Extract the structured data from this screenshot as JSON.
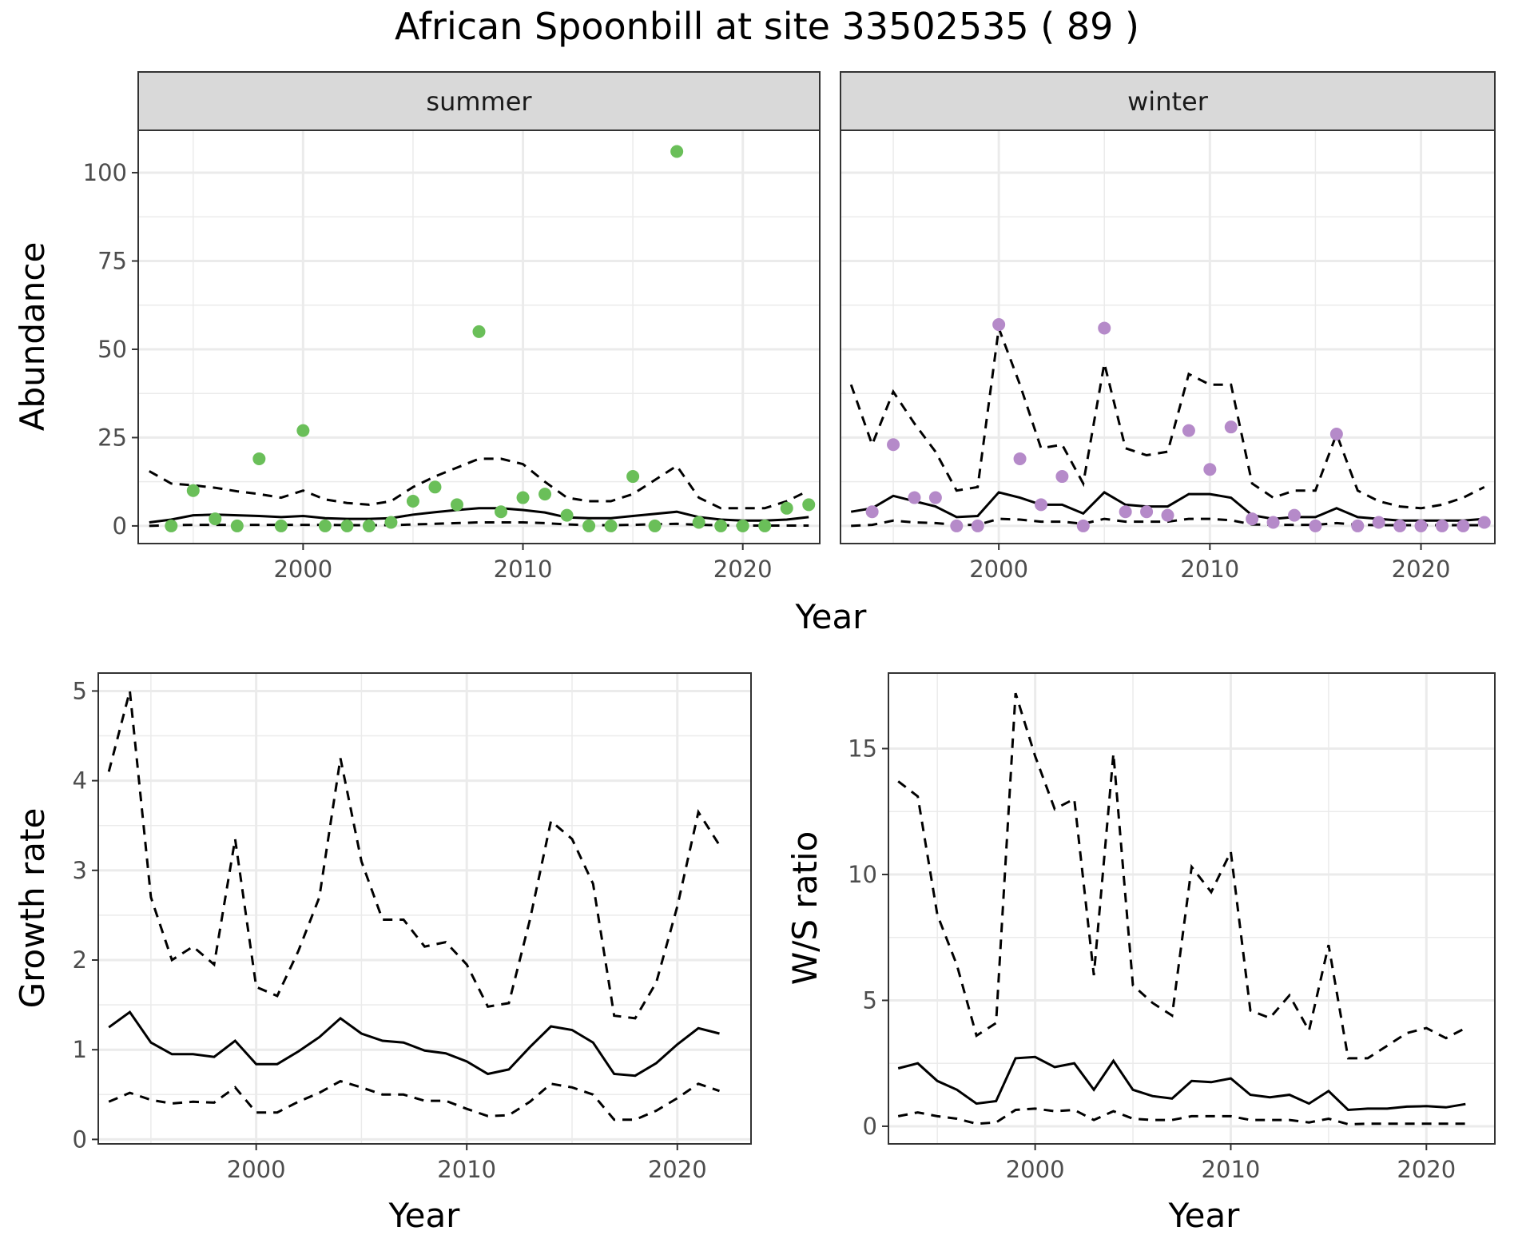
{
  "title": "African Spoonbill at site 33502535 ( 89 )",
  "colors": {
    "summer": "#6abf59",
    "winter": "#b58ac9"
  },
  "chart_data": [
    {
      "id": "abundance",
      "type": "scatter",
      "ylabel": "Abundance",
      "xlabel": "Year",
      "xlim": [
        1992.5,
        2023.5
      ],
      "ylim": [
        -5,
        112
      ],
      "xticks": [
        2000,
        2010,
        2020
      ],
      "yticks": [
        0,
        25,
        50,
        75,
        100
      ],
      "facets": [
        {
          "label": "summer",
          "color": "summer",
          "points": {
            "x": [
              1994,
              1995,
              1996,
              1997,
              1998,
              1999,
              2000,
              2001,
              2002,
              2003,
              2004,
              2005,
              2006,
              2007,
              2008,
              2009,
              2010,
              2011,
              2012,
              2013,
              2014,
              2015,
              2016,
              2017,
              2018,
              2019,
              2020,
              2021,
              2022,
              2023
            ],
            "y": [
              0,
              10,
              2,
              0,
              19,
              0,
              27,
              0,
              0,
              0,
              1,
              7,
              11,
              6,
              55,
              4,
              8,
              9,
              3,
              0,
              0,
              14,
              0,
              106,
              1,
              0,
              0,
              0,
              5,
              6
            ]
          },
          "lines": {
            "x": [
              1993,
              1994,
              1995,
              1996,
              1997,
              1998,
              1999,
              2000,
              2001,
              2002,
              2003,
              2004,
              2005,
              2006,
              2007,
              2008,
              2009,
              2010,
              2011,
              2012,
              2013,
              2014,
              2015,
              2016,
              2017,
              2018,
              2019,
              2020,
              2021,
              2022,
              2023
            ],
            "mid": [
              1,
              1.8,
              3,
              3.2,
              3,
              2.8,
              2.5,
              2.8,
              2.2,
              2,
              2,
              2.2,
              3.2,
              3.9,
              4.5,
              5,
              5,
              4.5,
              3.8,
              2.4,
              2.2,
              2.2,
              2.8,
              3.4,
              4,
              2.5,
              1.8,
              1.5,
              1.5,
              1.8,
              2.5
            ],
            "lower": [
              0,
              0.2,
              0.3,
              0.3,
              0.3,
              0.3,
              0.3,
              0.3,
              0.3,
              0.2,
              0.2,
              0.2,
              0.4,
              0.6,
              0.8,
              1,
              1,
              1,
              0.8,
              0.4,
              0.2,
              0.2,
              0.3,
              0.5,
              0.6,
              0.3,
              0.2,
              0.1,
              0.1,
              0.1,
              0.1
            ],
            "upper": [
              15.5,
              12,
              11.5,
              10.8,
              9.8,
              9,
              8,
              10,
              7.5,
              6.5,
              6,
              7,
              11,
              14,
              16.5,
              19,
              19,
              17.5,
              12.5,
              8,
              7,
              7,
              9,
              13,
              17,
              8,
              5,
              5,
              5,
              7,
              10
            ]
          }
        },
        {
          "label": "winter",
          "color": "winter",
          "points": {
            "x": [
              1994,
              1995,
              1996,
              1997,
              1998,
              1999,
              2000,
              2001,
              2002,
              2003,
              2004,
              2005,
              2006,
              2007,
              2008,
              2009,
              2010,
              2011,
              2012,
              2013,
              2014,
              2015,
              2016,
              2017,
              2018,
              2019,
              2020,
              2021,
              2022,
              2023
            ],
            "y": [
              4,
              23,
              8,
              8,
              0,
              0,
              57,
              19,
              6,
              14,
              0,
              56,
              4,
              4,
              3,
              27,
              16,
              28,
              2,
              1,
              3,
              0,
              26,
              0,
              1,
              0,
              0,
              0,
              0,
              1
            ]
          },
          "lines": {
            "x": [
              1993,
              1994,
              1995,
              1996,
              1997,
              1998,
              1999,
              2000,
              2001,
              2002,
              2003,
              2004,
              2005,
              2006,
              2007,
              2008,
              2009,
              2010,
              2011,
              2012,
              2013,
              2014,
              2015,
              2016,
              2017,
              2018,
              2019,
              2020,
              2021,
              2022,
              2023
            ],
            "mid": [
              4,
              5,
              8.5,
              7,
              5.5,
              2.5,
              2.8,
              9.5,
              8,
              6,
              6,
              3.5,
              9.5,
              6,
              5.5,
              5.5,
              9,
              9,
              8,
              3,
              2,
              2.5,
              2.5,
              5,
              2.5,
              2,
              1.5,
              1.5,
              1.5,
              1.5,
              2
            ],
            "lower": [
              0,
              0.3,
              1.5,
              1,
              0.8,
              0.3,
              0.3,
              2,
              1.8,
              1.2,
              1.2,
              0.6,
              2,
              1.2,
              1.2,
              1.2,
              2,
              2,
              1.6,
              0.4,
              0.3,
              0.3,
              0.3,
              0.8,
              0.3,
              0.2,
              0.2,
              0.2,
              0.2,
              0.2,
              0.2
            ],
            "upper": [
              40,
              23,
              38,
              29,
              21,
              10,
              11,
              56,
              40,
              22,
              23,
              12,
              46,
              22,
              20,
              21,
              43,
              40,
              40,
              12,
              8,
              10,
              10,
              26,
              10,
              7,
              5.5,
              5,
              6,
              8,
              11
            ]
          }
        }
      ]
    },
    {
      "id": "growth",
      "type": "line",
      "ylabel": "Growth rate",
      "xlabel": "Year",
      "xlim": [
        1992.5,
        2023.5
      ],
      "ylim": [
        -0.05,
        5.2
      ],
      "xticks": [
        2000,
        2010,
        2020
      ],
      "yticks": [
        0,
        1,
        2,
        3,
        4,
        5
      ],
      "x": [
        1993,
        1994,
        1995,
        1996,
        1997,
        1998,
        1999,
        2000,
        2001,
        2002,
        2003,
        2004,
        2005,
        2006,
        2007,
        2008,
        2009,
        2010,
        2011,
        2012,
        2013,
        2014,
        2015,
        2016,
        2017,
        2018,
        2019,
        2020,
        2021,
        2022
      ],
      "mid": [
        1.25,
        1.42,
        1.08,
        0.95,
        0.95,
        0.92,
        1.1,
        0.84,
        0.84,
        0.98,
        1.14,
        1.35,
        1.18,
        1.1,
        1.08,
        0.99,
        0.96,
        0.87,
        0.73,
        0.78,
        1.03,
        1.26,
        1.22,
        1.08,
        0.73,
        0.71,
        0.85,
        1.06,
        1.24,
        1.18
      ],
      "lower": [
        0.42,
        0.52,
        0.44,
        0.4,
        0.42,
        0.41,
        0.58,
        0.3,
        0.3,
        0.42,
        0.52,
        0.65,
        0.58,
        0.5,
        0.5,
        0.43,
        0.43,
        0.34,
        0.26,
        0.27,
        0.42,
        0.62,
        0.58,
        0.5,
        0.22,
        0.22,
        0.32,
        0.46,
        0.62,
        0.54
      ],
      "upper": [
        4.1,
        5,
        2.7,
        2.0,
        2.15,
        1.95,
        3.35,
        1.7,
        1.6,
        2.1,
        2.7,
        4.25,
        3.1,
        2.45,
        2.45,
        2.15,
        2.2,
        1.95,
        1.48,
        1.52,
        2.45,
        3.55,
        3.35,
        2.85,
        1.38,
        1.35,
        1.75,
        2.6,
        3.65,
        3.28
      ]
    },
    {
      "id": "ratio",
      "type": "line",
      "ylabel": "W/S ratio",
      "xlabel": "Year",
      "xlim": [
        1992.5,
        2023.5
      ],
      "ylim": [
        -0.7,
        18
      ],
      "xticks": [
        2000,
        2010,
        2020
      ],
      "yticks": [
        0,
        5,
        10,
        15
      ],
      "x": [
        1993,
        1994,
        1995,
        1996,
        1997,
        1998,
        1999,
        2000,
        2001,
        2002,
        2003,
        2004,
        2005,
        2006,
        2007,
        2008,
        2009,
        2010,
        2011,
        2012,
        2013,
        2014,
        2015,
        2016,
        2017,
        2018,
        2019,
        2020,
        2021,
        2022
      ],
      "mid": [
        2.3,
        2.5,
        1.8,
        1.45,
        0.9,
        1.0,
        2.7,
        2.75,
        2.35,
        2.5,
        1.45,
        2.6,
        1.45,
        1.2,
        1.1,
        1.8,
        1.75,
        1.9,
        1.25,
        1.15,
        1.25,
        0.9,
        1.4,
        0.65,
        0.7,
        0.7,
        0.78,
        0.8,
        0.75,
        0.88
      ],
      "lower": [
        0.4,
        0.55,
        0.4,
        0.3,
        0.1,
        0.15,
        0.65,
        0.7,
        0.6,
        0.65,
        0.25,
        0.6,
        0.3,
        0.25,
        0.25,
        0.4,
        0.4,
        0.4,
        0.25,
        0.25,
        0.25,
        0.15,
        0.3,
        0.08,
        0.1,
        0.1,
        0.1,
        0.1,
        0.1,
        0.1
      ],
      "upper": [
        13.7,
        13.1,
        8.4,
        6.4,
        3.6,
        4.1,
        17.2,
        14.7,
        12.6,
        13,
        6,
        14.8,
        5.6,
        4.9,
        4.4,
        10.3,
        9.3,
        10.9,
        4.6,
        4.3,
        5.2,
        3.8,
        7.2,
        2.7,
        2.7,
        3.2,
        3.7,
        3.9,
        3.5,
        3.9
      ]
    }
  ]
}
